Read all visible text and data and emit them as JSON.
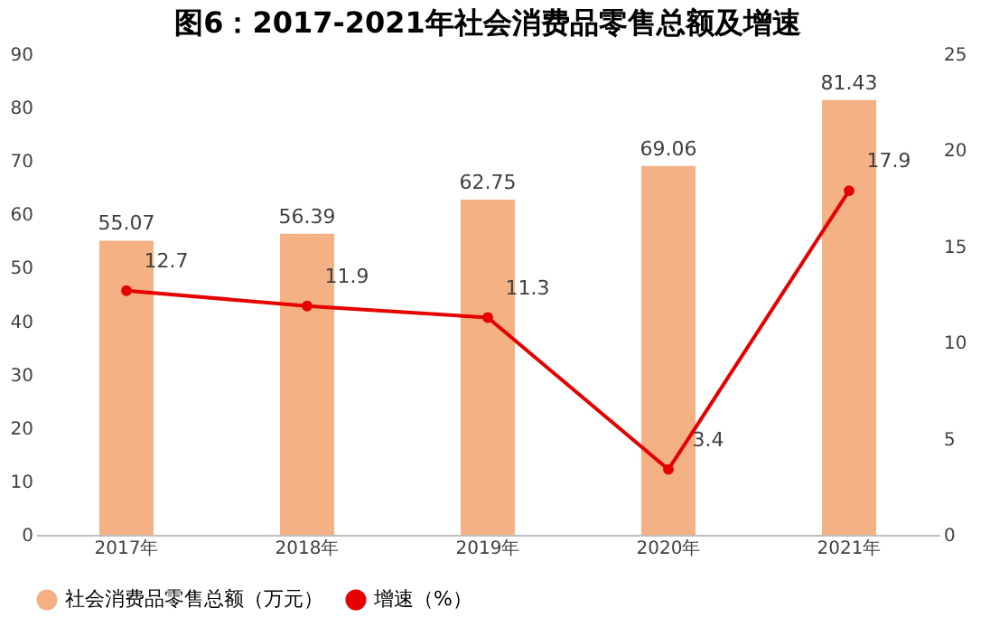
{
  "chart_data": {
    "type": "bar",
    "title": "图6：2017-2021年社会消费品零售总额及增速",
    "categories": [
      "2017年",
      "2018年",
      "2019年",
      "2020年",
      "2021年"
    ],
    "series": [
      {
        "name": "社会消费品零售总额（万元）",
        "color": "#f4b183",
        "values": [
          55.07,
          56.39,
          62.75,
          69.06,
          81.43
        ]
      },
      {
        "name": "增速（%）",
        "type": "line",
        "axis": "y2",
        "color": "#e60000",
        "values": [
          12.7,
          11.9,
          11.3,
          3.4,
          17.9
        ]
      }
    ],
    "ylim": [
      0,
      90
    ],
    "yticks": [
      0,
      10,
      20,
      30,
      40,
      50,
      60,
      70,
      80,
      90
    ],
    "y2lim": [
      0,
      25
    ],
    "y2ticks": [
      0,
      5,
      10,
      15,
      20,
      25
    ],
    "data_labels": true,
    "legend": "bottom",
    "marker": "circle",
    "line_style": "solid"
  }
}
